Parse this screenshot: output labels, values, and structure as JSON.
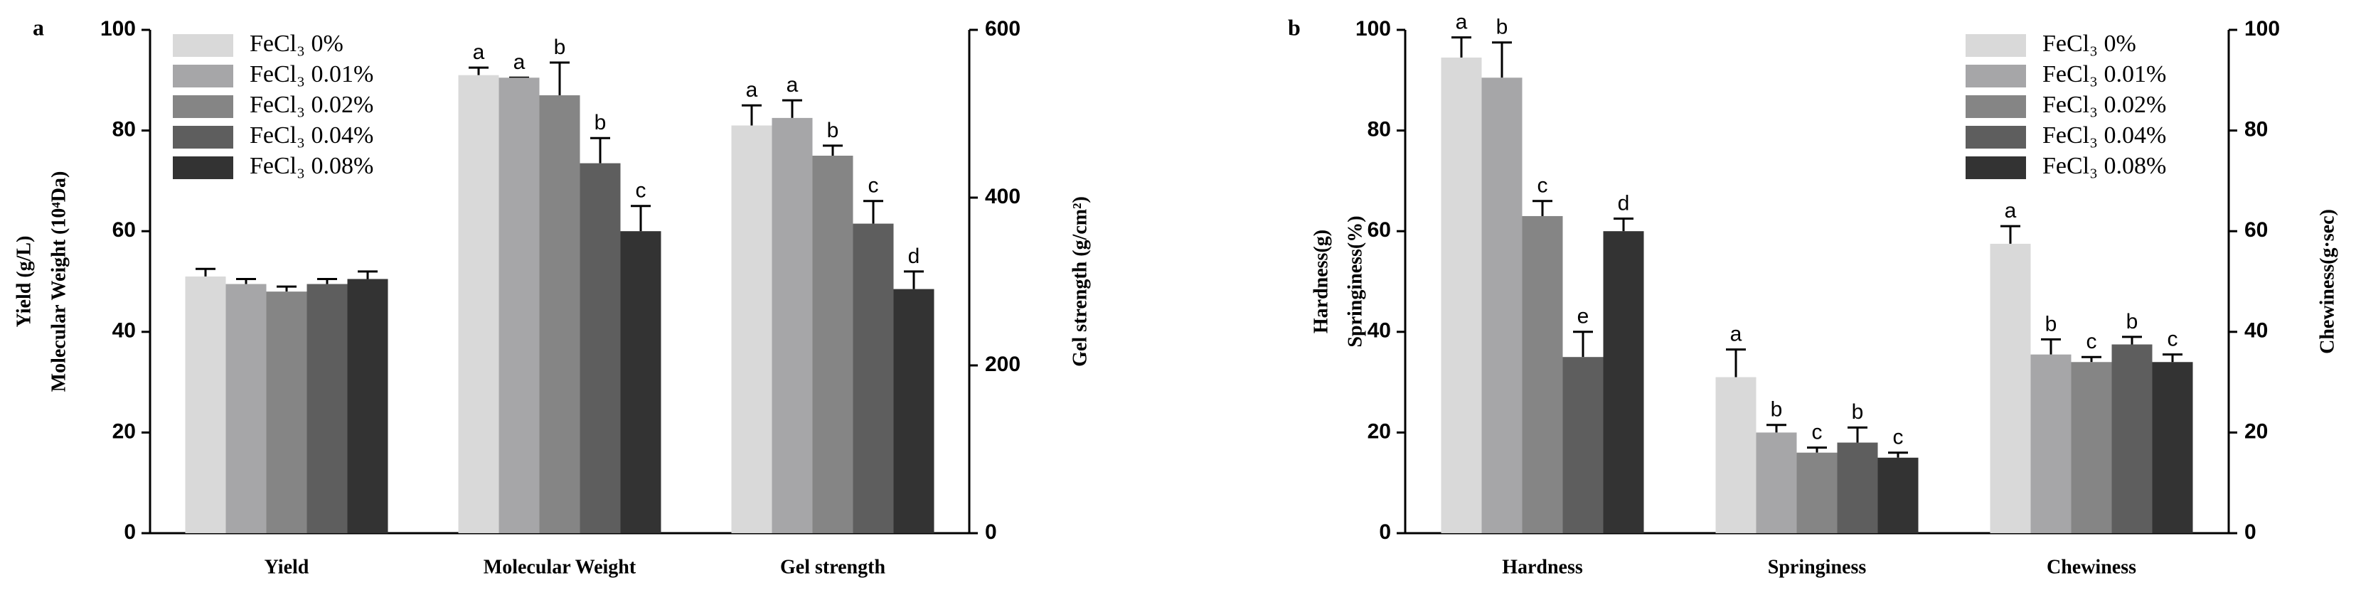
{
  "chart_data": [
    {
      "type": "bar",
      "panel_label": "a",
      "ylabel": [
        "Yield (g/L)",
        "Molecular Weight (10⁴Da)"
      ],
      "y2label": "Gel strength (g/cm²)",
      "categories": [
        "Yield",
        "Molecular Weight",
        "Gel strength"
      ],
      "category_axes": [
        "y",
        "y",
        "y2"
      ],
      "ylim": [
        0,
        100
      ],
      "yticks": [
        0,
        20,
        40,
        60,
        80,
        100
      ],
      "y2lim": [
        0,
        600
      ],
      "y2ticks": [
        0,
        200,
        400,
        600
      ],
      "legend": "upper left",
      "series": [
        {
          "name": "FeCl₃ 0%",
          "color": "#d9d9d9",
          "values": [
            51,
            91,
            486
          ],
          "errors": [
            1.5,
            1.5,
            24
          ],
          "letters": [
            null,
            "a",
            "a"
          ]
        },
        {
          "name": "FeCl₃ 0.01%",
          "color": "#a6a6a8",
          "values": [
            49.5,
            90.5,
            495
          ],
          "errors": [
            1,
            0,
            21
          ],
          "letters": [
            null,
            "a",
            "a"
          ]
        },
        {
          "name": "FeCl₃ 0.02%",
          "color": "#858585",
          "values": [
            48,
            87,
            450
          ],
          "errors": [
            1,
            6.5,
            12
          ],
          "letters": [
            null,
            "b",
            "b"
          ]
        },
        {
          "name": "FeCl₃ 0.04%",
          "color": "#5e5e5e",
          "values": [
            49.5,
            73.5,
            369
          ],
          "errors": [
            1,
            5,
            27
          ],
          "letters": [
            null,
            "b",
            "c"
          ]
        },
        {
          "name": "FeCl₃ 0.08%",
          "color": "#333333",
          "values": [
            50.5,
            60,
            291
          ],
          "errors": [
            1.5,
            5,
            21
          ],
          "letters": [
            null,
            "c",
            "d"
          ]
        }
      ]
    },
    {
      "type": "bar",
      "panel_label": "b",
      "ylabel": [
        "Hardness(g)",
        "Springiness(%)"
      ],
      "y2label": "Chewiness(g·sec)",
      "categories": [
        "Hardness",
        "Springiness",
        "Chewiness"
      ],
      "category_axes": [
        "y",
        "y",
        "y2"
      ],
      "ylim": [
        0,
        100
      ],
      "yticks": [
        0,
        20,
        40,
        60,
        80,
        100
      ],
      "y2lim": [
        0,
        100
      ],
      "y2ticks": [
        0,
        20,
        40,
        60,
        80,
        100
      ],
      "legend": "upper right",
      "series": [
        {
          "name": "FeCl₃ 0%",
          "color": "#d9d9d9",
          "values": [
            94.5,
            31,
            57.5
          ],
          "errors": [
            4,
            5.5,
            3.5
          ],
          "letters": [
            "a",
            "a",
            "a"
          ]
        },
        {
          "name": "FeCl₃ 0.01%",
          "color": "#a6a6a8",
          "values": [
            90.5,
            20,
            35.5
          ],
          "errors": [
            7,
            1.5,
            3
          ],
          "letters": [
            "b",
            "b",
            "b"
          ]
        },
        {
          "name": "FeCl₃ 0.02%",
          "color": "#858585",
          "values": [
            63,
            16,
            34
          ],
          "errors": [
            3,
            1,
            1
          ],
          "letters": [
            "c",
            "c",
            "c"
          ]
        },
        {
          "name": "FeCl₃ 0.04%",
          "color": "#5e5e5e",
          "values": [
            35,
            18,
            37.5
          ],
          "errors": [
            5,
            3,
            1.5
          ],
          "letters": [
            "e",
            "b",
            "b"
          ]
        },
        {
          "name": "FeCl₃ 0.08%",
          "color": "#333333",
          "values": [
            60,
            15,
            34
          ],
          "errors": [
            2.5,
            1,
            1.5
          ],
          "letters": [
            "d",
            "c",
            "c"
          ]
        }
      ]
    }
  ]
}
